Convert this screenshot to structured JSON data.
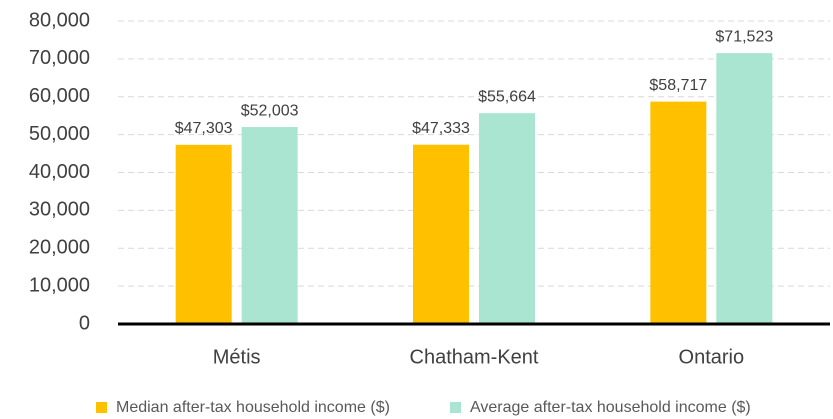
{
  "chart_data": {
    "type": "bar",
    "categories": [
      "Métis",
      "Chatham-Kent",
      "Ontario"
    ],
    "series": [
      {
        "name": "Median after-tax household income ($)",
        "color": "#ffc000",
        "values": [
          47303,
          47333,
          58717
        ],
        "value_labels": [
          "$47,303",
          "$47,333",
          "$58,717"
        ]
      },
      {
        "name": "Average after-tax household income ($)",
        "color": "#a9e5d1",
        "values": [
          52003,
          55664,
          71523
        ],
        "value_labels": [
          "$52,003",
          "$55,664",
          "$71,523"
        ]
      }
    ],
    "ylim": [
      0,
      80000
    ],
    "yticks": [
      0,
      {
        "value": 10000,
        "label": "10,000"
      },
      {
        "value": 20000,
        "label": "20,000"
      },
      {
        "value": 30000,
        "label": "30,000"
      },
      {
        "value": 40000,
        "label": "40,000"
      },
      {
        "value": 50000,
        "label": "50,000"
      },
      {
        "value": 60000,
        "label": "60,000"
      },
      {
        "value": 70000,
        "label": "70,000"
      },
      {
        "value": 80000,
        "label": "80,000"
      }
    ],
    "grid": true,
    "legend": "bottom"
  }
}
